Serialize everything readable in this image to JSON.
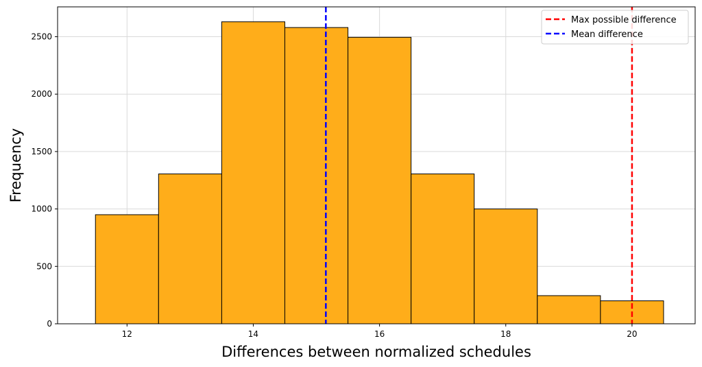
{
  "chart_data": {
    "type": "bar",
    "title": "",
    "xlabel": "Differences between normalized schedules",
    "ylabel": "Frequency",
    "xlim": [
      10.9,
      21.0
    ],
    "ylim": [
      0,
      2760
    ],
    "x_ticks": [
      12,
      14,
      16,
      18,
      20
    ],
    "y_ticks": [
      0,
      500,
      1000,
      1500,
      2000,
      2500
    ],
    "grid": true,
    "legend_position": "top-right",
    "bar_color": "#FFAD1A",
    "bar_edge_color": "#000000",
    "bins": [
      {
        "x0": 11.5,
        "x1": 12.5,
        "count": 950
      },
      {
        "x0": 12.5,
        "x1": 13.5,
        "count": 1305
      },
      {
        "x0": 13.5,
        "x1": 14.5,
        "count": 2630
      },
      {
        "x0": 14.5,
        "x1": 15.5,
        "count": 2580
      },
      {
        "x0": 15.5,
        "x1": 16.5,
        "count": 2495
      },
      {
        "x0": 16.5,
        "x1": 17.5,
        "count": 1305
      },
      {
        "x0": 17.5,
        "x1": 18.5,
        "count": 1000
      },
      {
        "x0": 18.5,
        "x1": 19.5,
        "count": 245
      },
      {
        "x0": 19.5,
        "x1": 20.5,
        "count": 200
      }
    ],
    "vlines": [
      {
        "name": "Max possible difference",
        "x": 20.0,
        "color": "#FF0000",
        "style": "dashed"
      },
      {
        "name": "Mean difference",
        "x": 15.15,
        "color": "#0000FF",
        "style": "dashed"
      }
    ]
  }
}
